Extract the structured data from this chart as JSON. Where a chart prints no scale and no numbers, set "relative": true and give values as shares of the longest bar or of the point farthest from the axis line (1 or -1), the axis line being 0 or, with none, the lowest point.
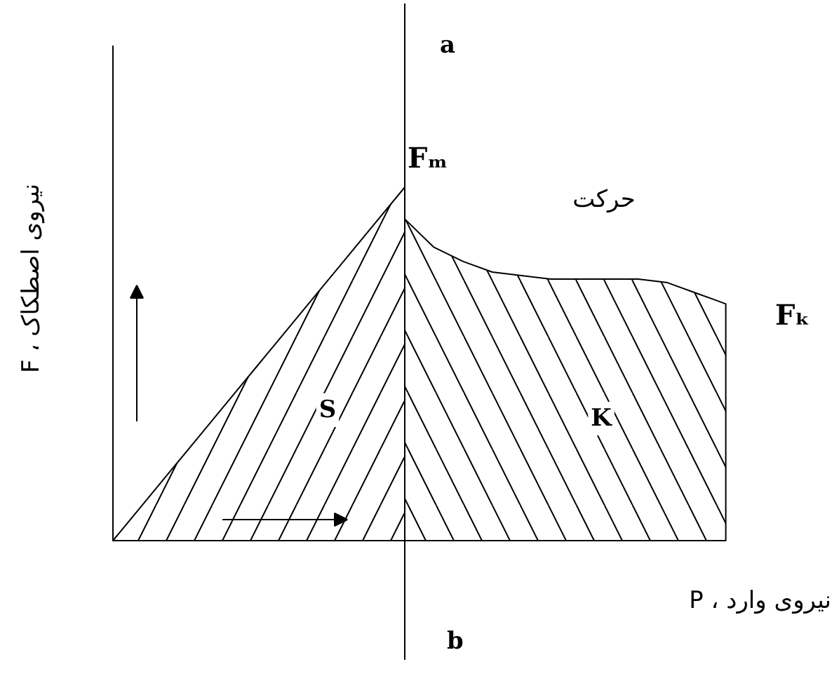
{
  "chart_data": {
    "type": "area",
    "relative": true,
    "xlabel": "نیروی وارد ، P",
    "ylabel": "نیروی اصطکاک ، F",
    "categories": [
      null,
      null,
      null,
      null,
      null,
      null,
      null,
      null,
      null,
      null,
      null,
      null,
      null,
      null,
      null,
      null,
      null,
      null,
      null,
      null,
      null,
      null
    ],
    "series": [
      {
        "color": "#000000",
        "values": [
          0,
          0.1,
          0.2,
          0.3,
          0.4,
          0.5,
          0.6,
          0.7,
          0.8,
          0.9,
          1.0,
          null,
          null,
          null,
          null,
          null,
          null,
          null,
          null,
          null,
          null,
          null
        ]
      },
      {
        "color": "#000000",
        "values": [
          null,
          null,
          null,
          null,
          null,
          null,
          null,
          null,
          null,
          null,
          0.91,
          0.83,
          0.79,
          0.76,
          0.75,
          0.74,
          0.74,
          0.74,
          0.74,
          0.73,
          0.7,
          0.67
        ]
      }
    ],
    "annotations": [
      "a",
      "b",
      "Fₘ",
      "Fₖ",
      "حرکت",
      "S",
      "K"
    ]
  }
}
